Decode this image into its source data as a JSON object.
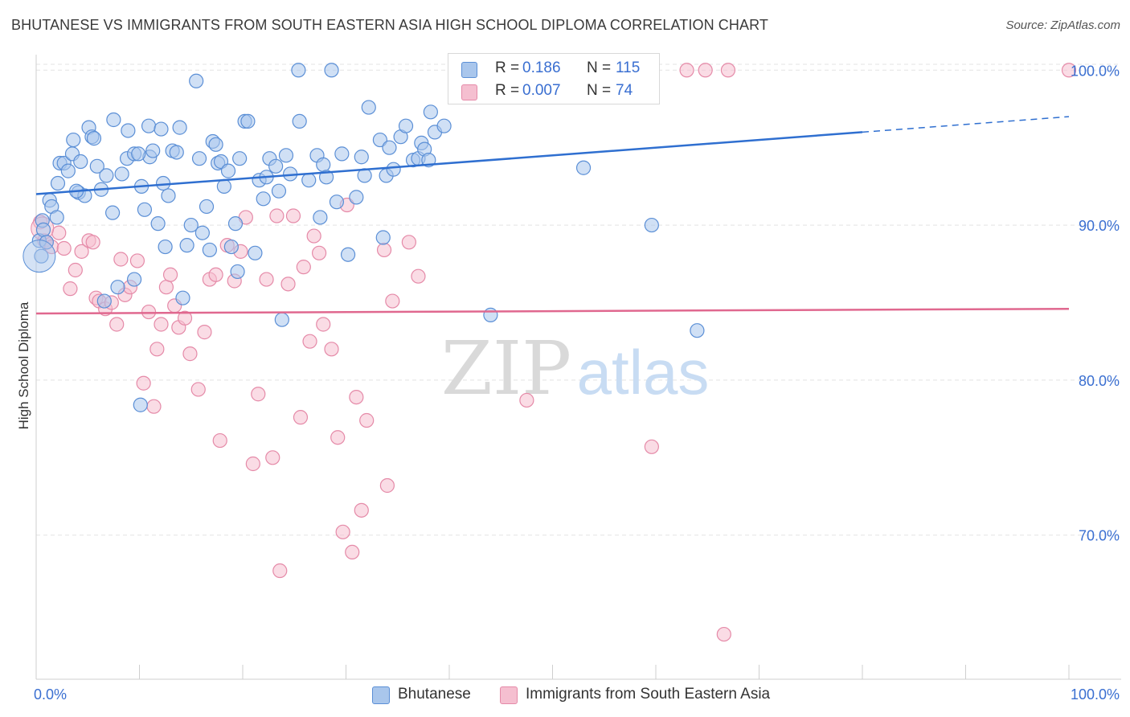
{
  "title": "BHUTANESE VS IMMIGRANTS FROM SOUTH EASTERN ASIA HIGH SCHOOL DIPLOMA CORRELATION CHART",
  "source": "Source: ZipAtlas.com",
  "watermark": {
    "zip": "ZIP",
    "atlas": "atlas"
  },
  "legend_top": {
    "rows": [
      {
        "r_label": "R =",
        "r_value": "0.186",
        "n_label": "N =",
        "n_value": "115"
      },
      {
        "r_label": "R =",
        "r_value": "0.007",
        "n_label": "N =",
        "n_value": "74"
      }
    ]
  },
  "legend_bottom": {
    "items": [
      {
        "label": "Bhutanese"
      },
      {
        "label": "Immigrants from South Eastern Asia"
      }
    ]
  },
  "colors": {
    "blue_fill": "#a9c6ec",
    "blue_stroke": "#5b8fd6",
    "blue_line": "#2f6fd0",
    "pink_fill": "#f5bfd0",
    "pink_stroke": "#e58aa8",
    "pink_line": "#e0688f",
    "tick_text": "#3a6fd1",
    "grid": "#e3e3e3"
  },
  "chart_data": {
    "type": "scatter",
    "title": "BHUTANESE VS IMMIGRANTS FROM SOUTH EASTERN ASIA HIGH SCHOOL DIPLOMA CORRELATION CHART",
    "xlabel": "",
    "ylabel": "High School Diploma",
    "xlim": [
      0,
      100
    ],
    "ylim": [
      60.7,
      101.0
    ],
    "x_tick_labels": [
      "0.0%",
      "100.0%"
    ],
    "y_ticks": [
      70,
      80,
      90,
      100
    ],
    "y_tick_labels": [
      "70.0%",
      "80.0%",
      "90.0%",
      "100.0%"
    ],
    "grid": true,
    "legend_position": "bottom",
    "series": [
      {
        "name": "Bhutanese",
        "color": "#5b8fd6",
        "trend": {
          "x": [
            0,
            80
          ],
          "y": [
            92.0,
            96.0
          ],
          "dashed_to": [
            100,
            97.0
          ]
        },
        "points": [
          [
            0.3,
            89.0
          ],
          [
            0.5,
            88.0
          ],
          [
            0.6,
            90.3
          ],
          [
            0.7,
            89.7
          ],
          [
            1.0,
            88.9
          ],
          [
            1.3,
            91.6
          ],
          [
            1.5,
            91.2
          ],
          [
            2.1,
            92.7
          ],
          [
            2.3,
            94.0
          ],
          [
            2.7,
            94.0
          ],
          [
            3.1,
            93.5
          ],
          [
            3.5,
            94.6
          ],
          [
            3.6,
            95.5
          ],
          [
            4.1,
            92.1
          ],
          [
            4.3,
            94.1
          ],
          [
            4.7,
            91.9
          ],
          [
            5.1,
            96.3
          ],
          [
            5.4,
            95.7
          ],
          [
            5.6,
            95.6
          ],
          [
            5.9,
            93.8
          ],
          [
            6.3,
            92.3
          ],
          [
            6.8,
            93.2
          ],
          [
            7.5,
            96.8
          ],
          [
            7.4,
            90.8
          ],
          [
            7.9,
            86.0
          ],
          [
            8.3,
            93.3
          ],
          [
            8.8,
            94.3
          ],
          [
            8.9,
            96.1
          ],
          [
            9.5,
            86.5
          ],
          [
            9.5,
            94.6
          ],
          [
            10.1,
            78.4
          ],
          [
            10.2,
            92.5
          ],
          [
            10.5,
            91.0
          ],
          [
            10.9,
            96.4
          ],
          [
            11.0,
            94.4
          ],
          [
            11.3,
            94.8
          ],
          [
            11.8,
            90.1
          ],
          [
            12.1,
            96.2
          ],
          [
            12.3,
            92.7
          ],
          [
            12.5,
            88.6
          ],
          [
            12.8,
            91.9
          ],
          [
            13.2,
            94.8
          ],
          [
            13.6,
            94.7
          ],
          [
            13.9,
            96.3
          ],
          [
            14.2,
            85.3
          ],
          [
            14.6,
            88.7
          ],
          [
            15.0,
            90.0
          ],
          [
            15.5,
            99.3
          ],
          [
            15.8,
            94.3
          ],
          [
            16.1,
            89.5
          ],
          [
            16.5,
            91.2
          ],
          [
            16.8,
            88.4
          ],
          [
            17.1,
            95.4
          ],
          [
            17.4,
            95.2
          ],
          [
            17.6,
            94.0
          ],
          [
            17.9,
            94.1
          ],
          [
            18.2,
            92.5
          ],
          [
            18.6,
            93.5
          ],
          [
            18.9,
            88.6
          ],
          [
            19.3,
            90.1
          ],
          [
            19.5,
            87.0
          ],
          [
            19.7,
            94.3
          ],
          [
            20.2,
            96.7
          ],
          [
            20.5,
            96.7
          ],
          [
            21.2,
            88.2
          ],
          [
            21.6,
            92.9
          ],
          [
            22.0,
            91.7
          ],
          [
            22.3,
            93.1
          ],
          [
            22.6,
            94.3
          ],
          [
            23.2,
            93.8
          ],
          [
            23.5,
            92.2
          ],
          [
            23.8,
            83.9
          ],
          [
            24.2,
            94.5
          ],
          [
            24.6,
            93.3
          ],
          [
            25.4,
            100.0
          ],
          [
            25.5,
            96.7
          ],
          [
            26.4,
            92.9
          ],
          [
            27.2,
            94.5
          ],
          [
            27.5,
            90.5
          ],
          [
            27.8,
            93.9
          ],
          [
            28.1,
            93.1
          ],
          [
            28.6,
            100.0
          ],
          [
            29.1,
            91.5
          ],
          [
            29.6,
            94.6
          ],
          [
            30.2,
            88.1
          ],
          [
            31.0,
            91.8
          ],
          [
            31.5,
            94.4
          ],
          [
            31.8,
            93.2
          ],
          [
            32.2,
            97.6
          ],
          [
            33.3,
            95.5
          ],
          [
            33.6,
            89.2
          ],
          [
            33.9,
            93.2
          ],
          [
            34.2,
            95.0
          ],
          [
            34.6,
            93.6
          ],
          [
            35.3,
            95.7
          ],
          [
            35.8,
            96.4
          ],
          [
            36.5,
            94.2
          ],
          [
            37.0,
            94.3
          ],
          [
            37.3,
            95.3
          ],
          [
            37.6,
            94.9
          ],
          [
            38.0,
            94.2
          ],
          [
            38.2,
            97.3
          ],
          [
            38.6,
            96.0
          ],
          [
            39.5,
            96.4
          ],
          [
            42.2,
            100.0
          ],
          [
            44.0,
            84.2
          ],
          [
            46.1,
            100.0
          ],
          [
            53.0,
            93.7
          ],
          [
            59.6,
            90.0
          ],
          [
            64.0,
            83.2
          ],
          [
            2.0,
            90.5
          ],
          [
            6.6,
            85.1
          ],
          [
            3.9,
            92.2
          ],
          [
            9.9,
            94.6
          ]
        ]
      },
      {
        "name": "Immigrants from South Eastern Asia",
        "color": "#e58aa8",
        "trend": {
          "x": [
            0,
            100
          ],
          "y": [
            84.3,
            84.6
          ]
        },
        "points": [
          [
            0.4,
            90.2
          ],
          [
            0.8,
            89.0
          ],
          [
            1.0,
            88.9
          ],
          [
            1.5,
            88.6
          ],
          [
            2.2,
            89.5
          ],
          [
            2.7,
            88.5
          ],
          [
            3.3,
            85.9
          ],
          [
            3.8,
            87.1
          ],
          [
            4.4,
            88.3
          ],
          [
            5.1,
            89.0
          ],
          [
            5.5,
            88.9
          ],
          [
            5.8,
            85.3
          ],
          [
            6.1,
            85.1
          ],
          [
            6.7,
            84.6
          ],
          [
            7.3,
            85.0
          ],
          [
            7.8,
            83.6
          ],
          [
            8.2,
            87.8
          ],
          [
            8.6,
            85.5
          ],
          [
            9.1,
            86.0
          ],
          [
            9.8,
            87.7
          ],
          [
            10.4,
            79.8
          ],
          [
            10.9,
            84.4
          ],
          [
            11.4,
            78.3
          ],
          [
            11.7,
            82.0
          ],
          [
            12.1,
            83.6
          ],
          [
            12.6,
            86.0
          ],
          [
            13.0,
            86.8
          ],
          [
            13.4,
            84.8
          ],
          [
            13.8,
            83.4
          ],
          [
            14.4,
            84.0
          ],
          [
            14.9,
            81.7
          ],
          [
            15.7,
            79.4
          ],
          [
            16.3,
            83.1
          ],
          [
            16.8,
            86.5
          ],
          [
            17.4,
            86.8
          ],
          [
            17.8,
            76.1
          ],
          [
            18.5,
            88.7
          ],
          [
            19.2,
            86.4
          ],
          [
            19.8,
            88.3
          ],
          [
            20.3,
            90.5
          ],
          [
            21.0,
            74.6
          ],
          [
            21.5,
            79.1
          ],
          [
            22.3,
            86.5
          ],
          [
            22.9,
            75.0
          ],
          [
            23.3,
            90.6
          ],
          [
            23.6,
            67.7
          ],
          [
            24.4,
            86.2
          ],
          [
            24.9,
            90.6
          ],
          [
            25.6,
            77.6
          ],
          [
            25.9,
            87.3
          ],
          [
            26.5,
            82.5
          ],
          [
            26.9,
            89.3
          ],
          [
            27.4,
            88.2
          ],
          [
            27.8,
            83.6
          ],
          [
            28.6,
            82.0
          ],
          [
            29.2,
            76.3
          ],
          [
            29.7,
            70.2
          ],
          [
            30.1,
            91.3
          ],
          [
            30.6,
            68.9
          ],
          [
            31.0,
            78.9
          ],
          [
            31.5,
            71.6
          ],
          [
            32.0,
            77.4
          ],
          [
            33.7,
            88.4
          ],
          [
            34.0,
            73.2
          ],
          [
            34.5,
            85.1
          ],
          [
            36.1,
            88.9
          ],
          [
            37.0,
            86.7
          ],
          [
            47.5,
            78.7
          ],
          [
            59.6,
            75.7
          ],
          [
            63.0,
            100.0
          ],
          [
            67.0,
            100.0
          ],
          [
            64.8,
            100.0
          ],
          [
            100.0,
            100.0
          ],
          [
            66.6,
            63.6
          ]
        ]
      }
    ]
  }
}
